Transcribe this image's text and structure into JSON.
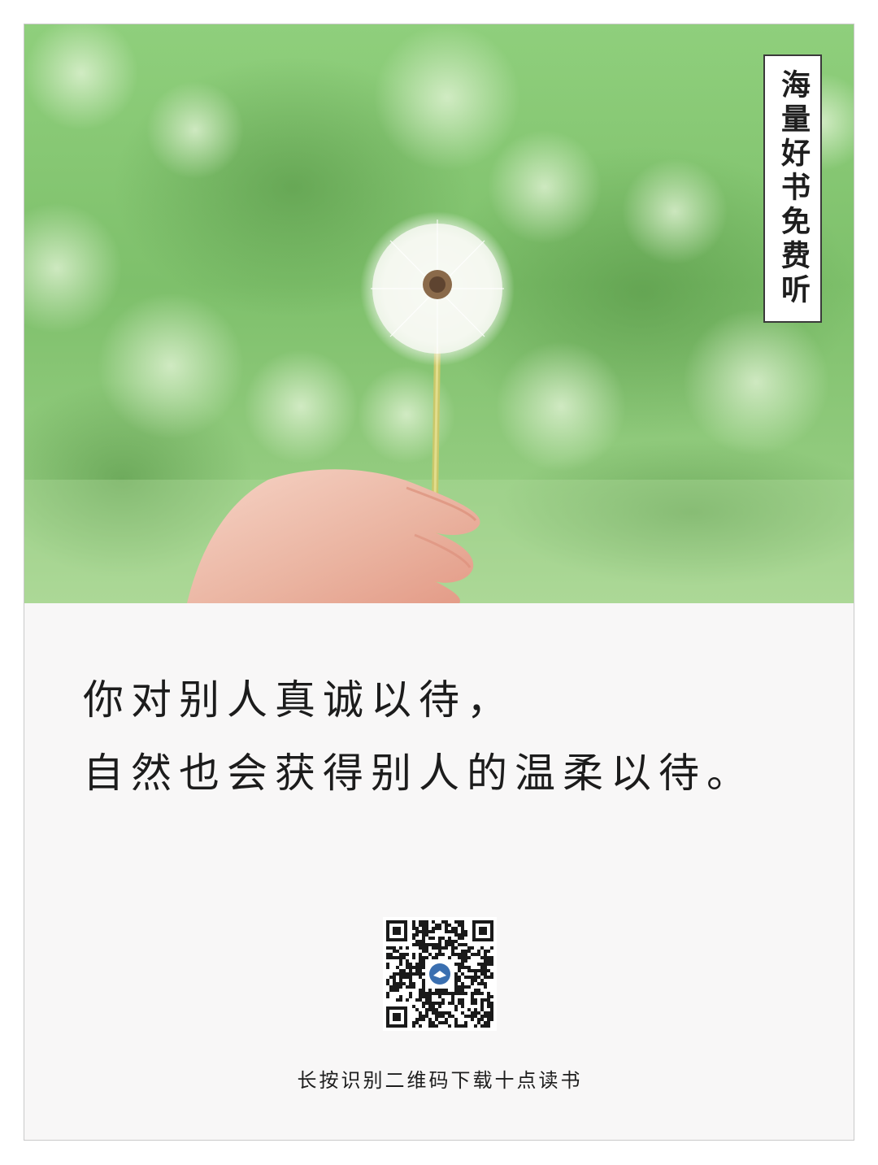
{
  "side_tag": {
    "text": "海量好书免费听"
  },
  "quote": {
    "line1": "你对别人真诚以待，",
    "line2": "自然也会获得别人的温柔以待。"
  },
  "qr_code": {
    "center_icon": "book-logo-icon"
  },
  "caption": {
    "text": "长按识别二维码下载十点读书"
  },
  "colors": {
    "card_background": "#f8f7f7",
    "border": "#c9c9c9",
    "tag_border": "#3a3a3a",
    "text": "#1c1c1c",
    "photo_green": "#7dbb6a",
    "qr_logo_blue": "#3a6fb0"
  }
}
